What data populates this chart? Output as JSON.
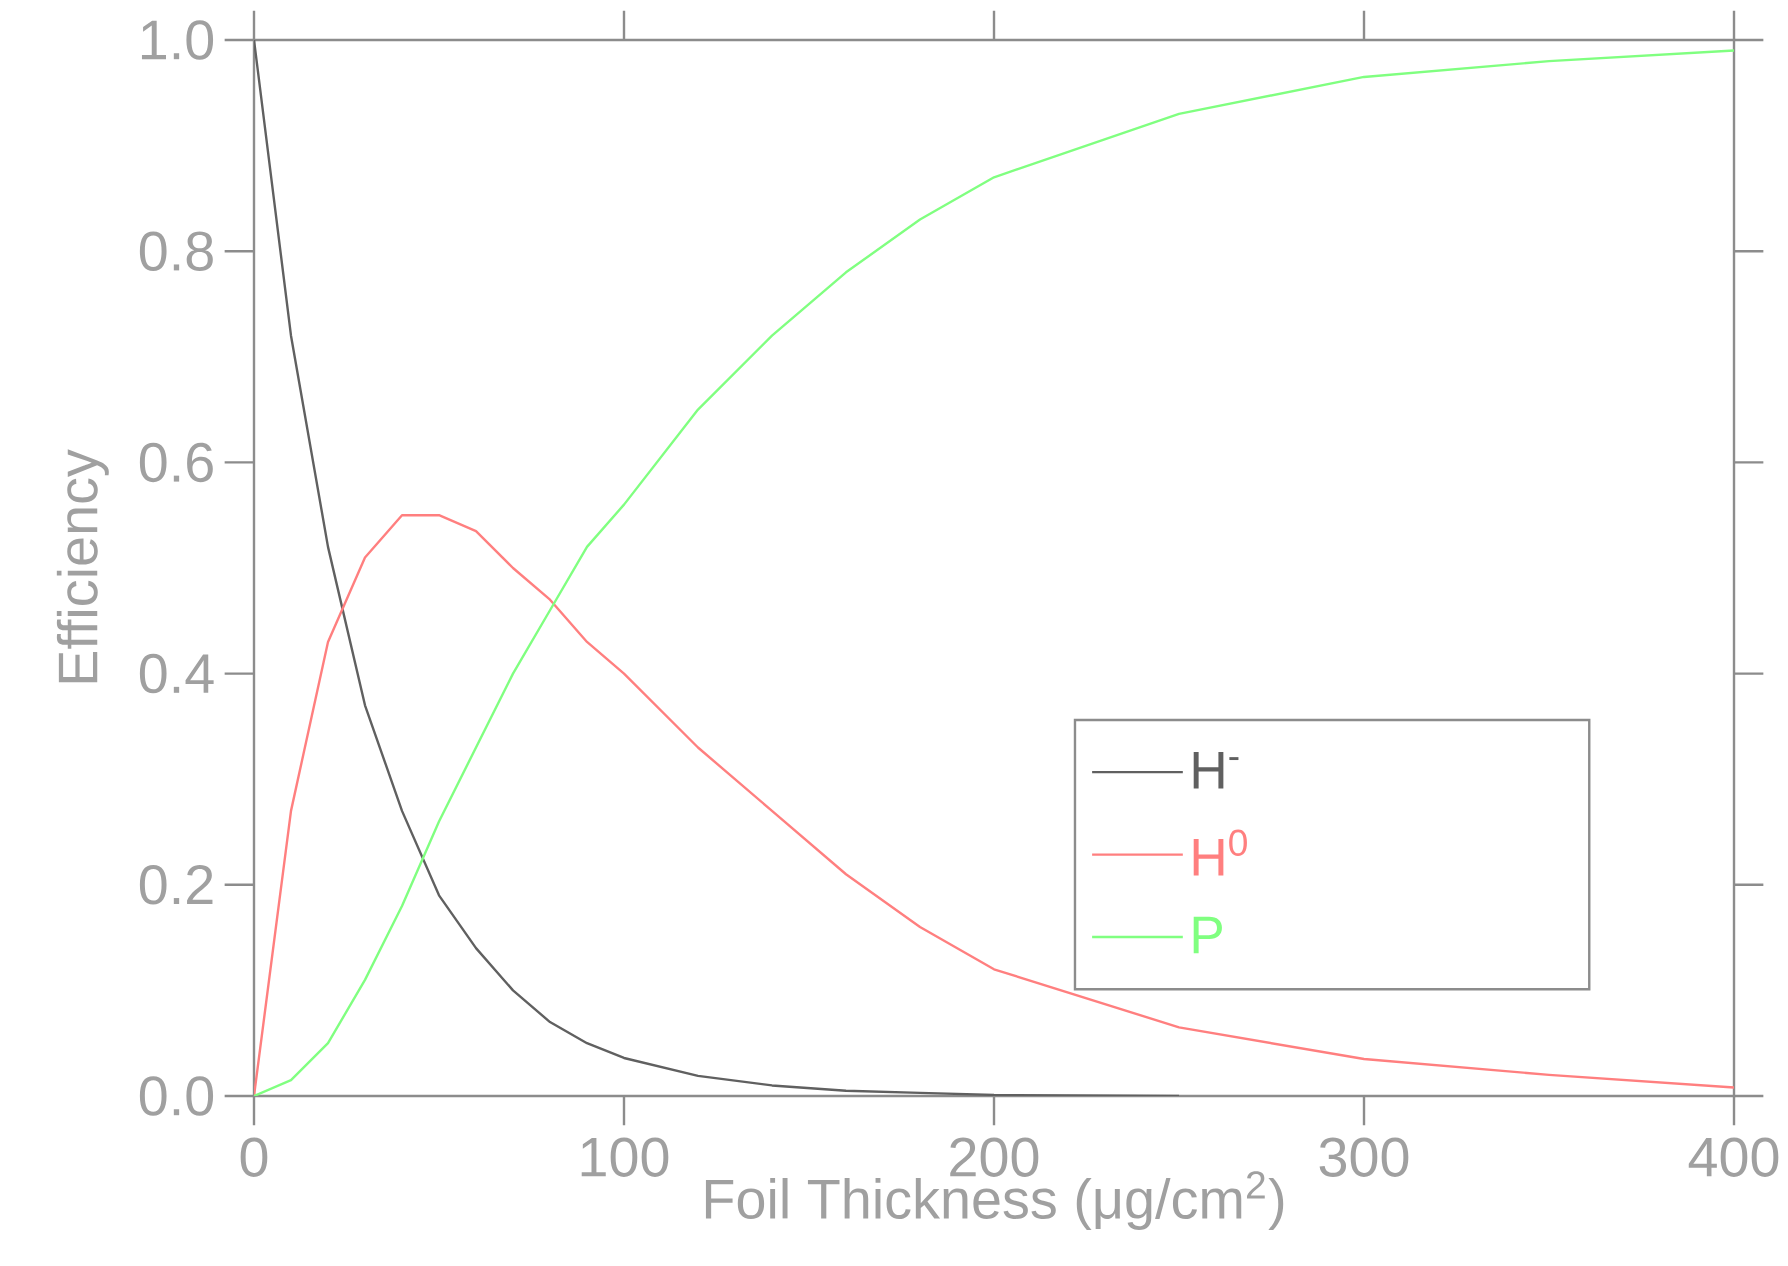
{
  "chart_data": {
    "type": "line",
    "xlabel": "Foil Thickness (μg/cm$^{2}$)",
    "ylabel": "Efficiency",
    "xlim": [
      0,
      400
    ],
    "ylim": [
      0,
      1
    ],
    "xticks": [
      0,
      100,
      200,
      300,
      400
    ],
    "yticks": [
      {
        "value": 0,
        "label": "0.0"
      },
      {
        "value": 0.2,
        "label": "0.2"
      },
      {
        "value": 0.4,
        "label": "0.4"
      },
      {
        "value": 0.6,
        "label": "0.6"
      },
      {
        "value": 0.8,
        "label": "0.8"
      },
      {
        "value": 1,
        "label": "1.0"
      }
    ],
    "grid": false,
    "legend": "bottom right",
    "marker": "none",
    "line_style": "solid",
    "series": [
      {
        "name": "H$^{-}$",
        "color": "#606060",
        "x": [
          0,
          10,
          20,
          30,
          40,
          50,
          60,
          70,
          80,
          90,
          100,
          120,
          140,
          160,
          180,
          200,
          250
        ],
        "values": [
          1.0,
          0.72,
          0.52,
          0.37,
          0.27,
          0.19,
          0.14,
          0.1,
          0.07,
          0.05,
          0.036,
          0.019,
          0.01,
          0.005,
          0.003,
          0.001,
          0
        ]
      },
      {
        "name": "H$^{0}$",
        "color": "#ff7f7f",
        "x": [
          0,
          10,
          20,
          30,
          40,
          50,
          60,
          70,
          80,
          90,
          100,
          120,
          140,
          160,
          180,
          200,
          250,
          300,
          350,
          400
        ],
        "values": [
          0,
          0.27,
          0.43,
          0.51,
          0.55,
          0.55,
          0.535,
          0.5,
          0.47,
          0.43,
          0.4,
          0.33,
          0.27,
          0.21,
          0.16,
          0.12,
          0.065,
          0.035,
          0.02,
          0.008
        ]
      },
      {
        "name": "P",
        "color": "#80ff80",
        "x": [
          0,
          10,
          20,
          30,
          40,
          50,
          60,
          70,
          80,
          90,
          100,
          120,
          140,
          160,
          180,
          200,
          250,
          300,
          350,
          400
        ],
        "values": [
          0,
          0.015,
          0.05,
          0.11,
          0.18,
          0.26,
          0.33,
          0.4,
          0.46,
          0.52,
          0.56,
          0.65,
          0.72,
          0.78,
          0.83,
          0.87,
          0.93,
          0.965,
          0.98,
          0.99
        ]
      }
    ]
  }
}
